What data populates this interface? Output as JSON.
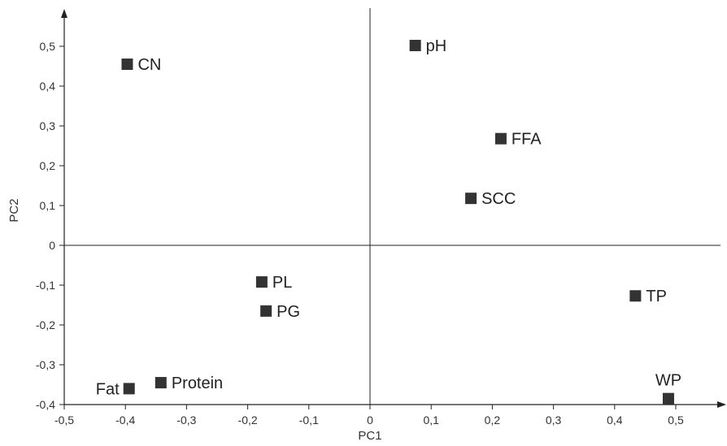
{
  "chart_data": {
    "type": "scatter",
    "title": "",
    "xlabel": "PC1",
    "ylabel": "PC2",
    "xlim": [
      -0.5,
      0.58
    ],
    "ylim": [
      -0.4,
      0.59
    ],
    "x_ticks": [
      "-0,5",
      "-0,4",
      "-0,3",
      "-0,2",
      "-0,1",
      "0",
      "0,1",
      "0,2",
      "0,3",
      "0,4",
      "0,5"
    ],
    "y_ticks": [
      "-0,4",
      "-0,3",
      "-0,2",
      "-0,1",
      "0",
      "0,1",
      "0,2",
      "0,3",
      "0,4",
      "0,5"
    ],
    "grid": false,
    "marker": "square",
    "marker_color": "#333333",
    "points": [
      {
        "label": "CN",
        "x": -0.397,
        "y": 0.455
      },
      {
        "label": "pH",
        "x": 0.074,
        "y": 0.502
      },
      {
        "label": "FFA",
        "x": 0.214,
        "y": 0.268
      },
      {
        "label": "SCC",
        "x": 0.165,
        "y": 0.118
      },
      {
        "label": "PL",
        "x": -0.177,
        "y": -0.092
      },
      {
        "label": "PG",
        "x": -0.17,
        "y": -0.165
      },
      {
        "label": "TP",
        "x": 0.434,
        "y": -0.127
      },
      {
        "label": "WP",
        "x": 0.488,
        "y": -0.385
      },
      {
        "label": "Protein",
        "x": -0.342,
        "y": -0.345
      },
      {
        "label": "Fat",
        "x": -0.394,
        "y": -0.36
      }
    ]
  }
}
